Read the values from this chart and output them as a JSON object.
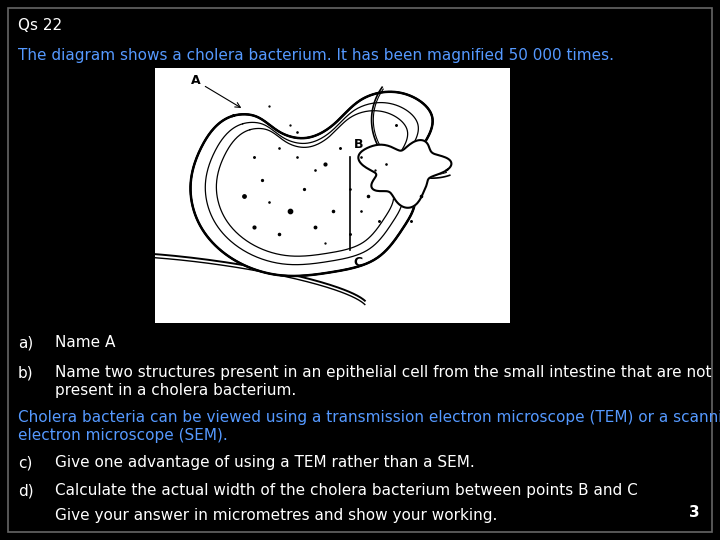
{
  "background_color": "#000000",
  "border_color": "#666666",
  "title": "Qs 22",
  "title_color": "#ffffff",
  "title_fontsize": 11,
  "intro_text": "The diagram shows a cholera bacterium. It has been magnified 50 000 times.",
  "intro_color": "#5599ff",
  "intro_fontsize": 11,
  "a_label": "a)",
  "a_text": "Name A",
  "a_color": "#ffffff",
  "a_fontsize": 11,
  "b_label": "b)",
  "b_text1": "Name two structures present in an epithelial cell from the small intestine that are not",
  "b_text2": "present in a cholera bacterium.",
  "b_color": "#ffffff",
  "b_fontsize": 11,
  "blue_text1": "Cholera bacteria can be viewed using a transmission electron microscope (TEM) or a scanning",
  "blue_text2": "electron microscope (SEM).",
  "blue_color": "#5599ff",
  "blue_fontsize": 11,
  "c_label": "c)",
  "c_text": "Give one advantage of using a TEM rather than a SEM.",
  "c_color": "#ffffff",
  "c_fontsize": 11,
  "d_label": "d)",
  "d_text": "Calculate the actual width of the cholera bacterium between points B and C",
  "d_color": "#ffffff",
  "d_fontsize": 11,
  "e_text": "Give your answer in micrometres and show your working.",
  "e_color": "#ffffff",
  "e_fontsize": 11,
  "page_num": "3",
  "page_num_color": "#ffffff",
  "page_num_fontsize": 11
}
